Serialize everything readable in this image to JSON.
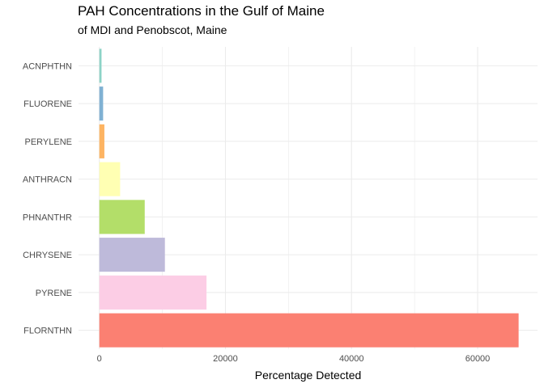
{
  "chart_data": {
    "type": "bar",
    "orientation": "horizontal",
    "title": "PAH Concentrations in the Gulf of Maine",
    "subtitle": "of MDI and Penobscot, Maine",
    "xlabel": "Percentage Detected",
    "ylabel": "",
    "categories": [
      "FLORNTHN",
      "PYRENE",
      "CHRYSENE",
      "PHNANTHR",
      "ANTHRACN",
      "PERYLENE",
      "FLUORENE",
      "ACNPHTHN"
    ],
    "values": [
      66500,
      17000,
      10400,
      7200,
      3300,
      800,
      600,
      350
    ],
    "colors": [
      "#FB8072",
      "#FCCDE5",
      "#BEBADA",
      "#B3DE69",
      "#FFFFB3",
      "#FDB462",
      "#80B1D3",
      "#8DD3C7"
    ],
    "x_ticks": [
      0,
      20000,
      40000,
      60000
    ],
    "x_tick_labels": [
      "0",
      "20000",
      "40000",
      "60000"
    ],
    "xlim": [
      -3300,
      69500
    ],
    "grid": true,
    "legend": "none"
  }
}
